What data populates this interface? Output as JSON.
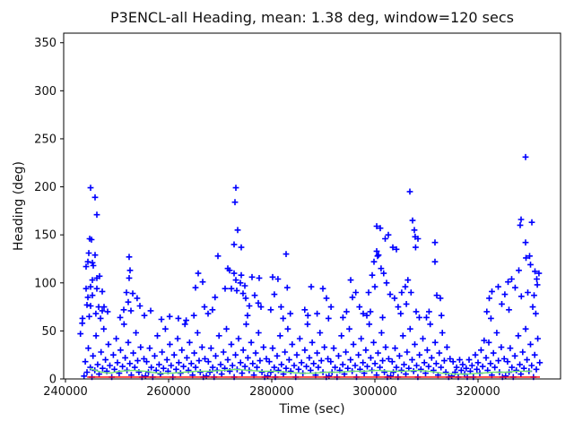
{
  "figure": {
    "background": "#ffffff"
  },
  "chart_data": {
    "type": "scatter",
    "title": "P3ENCL-all Heading, mean: 1.38 deg, window=120 secs",
    "xlabel": "Time (sec)",
    "ylabel": "Heading (deg)",
    "mean_deg": 1.38,
    "window_secs": 120,
    "xlim": [
      239650,
      336000
    ],
    "ylim": [
      0,
      360
    ],
    "xticks": [
      240000,
      260000,
      280000,
      300000,
      320000
    ],
    "yticks": [
      0,
      50,
      100,
      150,
      200,
      250,
      300,
      350
    ],
    "grid": false,
    "legend": "none",
    "colors": {
      "scatter": "#0000ff",
      "running_mean": "#70e070",
      "overall_mean": "#ff0000"
    },
    "series": [
      {
        "name": "heading-scatter",
        "kind": "scatter",
        "marker": "+",
        "color": "#0000ff",
        "points": [
          244870,
          199,
          245740,
          189,
          246090,
          171,
          244700,
          146,
          245050,
          145,
          244520,
          131,
          245740,
          129,
          244350,
          122,
          245220,
          121,
          244000,
          117,
          245390,
          118,
          245220,
          103,
          246090,
          105,
          246610,
          107,
          244000,
          94,
          244870,
          96,
          246090,
          94,
          247130,
          91,
          244350,
          85,
          245220,
          87,
          244170,
          77,
          244870,
          76,
          246430,
          75,
          247480,
          75,
          247130,
          71,
          248170,
          70,
          243300,
          63,
          244600,
          65,
          245900,
          68,
          246800,
          63,
          242900,
          47,
          243250,
          58,
          252350,
          127,
          252520,
          113,
          252350,
          105,
          251830,
          90,
          253040,
          89,
          252170,
          80,
          253900,
          84,
          254430,
          76,
          252700,
          71,
          256520,
          71,
          255300,
          66,
          251300,
          72,
          250600,
          64,
          258600,
          62,
          260200,
          65,
          261900,
          63,
          263400,
          61,
          265740,
          110,
          266610,
          101,
          269570,
          128,
          265220,
          95,
          266960,
          75,
          267650,
          68,
          268500,
          72,
          264900,
          66,
          269000,
          85,
          273040,
          199,
          272870,
          184,
          273390,
          155,
          272700,
          140,
          274090,
          137,
          271480,
          115,
          271830,
          113,
          272700,
          110,
          274090,
          108,
          273040,
          103,
          273910,
          100,
          274780,
          97,
          273220,
          92,
          274430,
          89,
          272170,
          94,
          270960,
          94,
          274960,
          84,
          276170,
          106,
          277570,
          105,
          276700,
          87,
          277390,
          79,
          277910,
          75,
          275650,
          76,
          275300,
          66,
          280170,
          106,
          281200,
          104,
          282780,
          130,
          283000,
          95,
          280500,
          88,
          279800,
          72,
          281800,
          75,
          283600,
          68,
          282200,
          63,
          287650,
          96,
          286400,
          72,
          287000,
          66,
          289910,
          94,
          290600,
          84,
          291500,
          75,
          288800,
          68,
          291000,
          63,
          295300,
          103,
          295650,
          85,
          296300,
          90,
          294500,
          70,
          297000,
          75,
          297740,
          68,
          293800,
          64,
          300350,
          159,
          301050,
          157,
          300520,
          128,
          302000,
          146,
          302600,
          150,
          303480,
          137,
          304170,
          135,
          306780,
          195,
          307300,
          165,
          307650,
          155,
          307800,
          148,
          308350,
          146,
          307900,
          137,
          300350,
          133,
          300700,
          129,
          299830,
          122,
          301200,
          115,
          301700,
          110,
          299480,
          108,
          302260,
          100,
          300000,
          96,
          298780,
          90,
          302960,
          88,
          303800,
          84,
          305200,
          90,
          305900,
          96,
          306400,
          103,
          304500,
          75,
          299130,
          70,
          298430,
          66,
          301500,
          64,
          305000,
          68,
          306100,
          78,
          307000,
          90,
          308000,
          70,
          308600,
          64,
          311650,
          142,
          311650,
          122,
          312000,
          87,
          312700,
          84,
          310500,
          70,
          310000,
          64,
          312900,
          66,
          322170,
          84,
          322700,
          91,
          323910,
          96,
          325830,
          101,
          326520,
          104,
          327910,
          113,
          321700,
          70,
          322500,
          63,
          324600,
          78,
          325200,
          88,
          326000,
          72,
          327200,
          95,
          328400,
          86,
          329220,
          231,
          328170,
          160,
          328350,
          166,
          330430,
          163,
          329300,
          126,
          330170,
          119,
          331040,
          112,
          331390,
          104,
          329650,
          90,
          330870,
          87,
          329220,
          142,
          330000,
          128,
          331800,
          110,
          331500,
          98,
          330600,
          75,
          331200,
          68,
          243600,
          3,
          243850,
          18,
          244170,
          7,
          244440,
          32,
          244820,
          12,
          245120,
          2,
          245340,
          24,
          245680,
          9,
          245930,
          45,
          246250,
          15,
          246520,
          5,
          246900,
          28,
          247200,
          11,
          247420,
          52,
          247760,
          20,
          248010,
          8,
          248330,
          36,
          248600,
          14,
          248980,
          2,
          249280,
          25,
          249500,
          10,
          249840,
          42,
          250090,
          17,
          250410,
          6,
          250680,
          30,
          251060,
          13,
          251360,
          57,
          251580,
          22,
          251920,
          9,
          252170,
          38,
          252490,
          16,
          252760,
          4,
          253140,
          27,
          253440,
          12,
          253660,
          48,
          254000,
          19,
          254250,
          7,
          254570,
          33,
          254840,
          2,
          255220,
          21,
          255520,
          3,
          255740,
          18,
          256080,
          7,
          256330,
          32,
          256650,
          12,
          256920,
          2,
          257300,
          24,
          257600,
          9,
          257820,
          45,
          258160,
          15,
          258410,
          5,
          258730,
          28,
          259000,
          11,
          259380,
          52,
          259680,
          20,
          259900,
          8,
          260240,
          36,
          260490,
          14,
          260810,
          2,
          261080,
          25,
          261460,
          10,
          261760,
          42,
          261980,
          17,
          262320,
          6,
          262570,
          30,
          262890,
          13,
          263160,
          57,
          263540,
          22,
          263840,
          9,
          264060,
          38,
          264400,
          16,
          264650,
          4,
          264970,
          27,
          265240,
          12,
          265620,
          48,
          265920,
          19,
          266140,
          7,
          266480,
          33,
          266730,
          2,
          267050,
          21,
          267320,
          3,
          267700,
          18,
          268000,
          7,
          268220,
          32,
          268560,
          12,
          268810,
          2,
          269130,
          24,
          269400,
          9,
          269780,
          45,
          270080,
          15,
          270300,
          5,
          270640,
          28,
          270890,
          11,
          271210,
          52,
          271480,
          20,
          271860,
          8,
          272160,
          36,
          272380,
          14,
          272720,
          2,
          272970,
          25,
          273290,
          10,
          273560,
          42,
          273940,
          17,
          274240,
          6,
          274460,
          30,
          274800,
          13,
          275050,
          57,
          275370,
          22,
          275640,
          9,
          276020,
          38,
          276320,
          16,
          276540,
          4,
          276880,
          27,
          277130,
          12,
          277450,
          48,
          277720,
          19,
          278100,
          7,
          278400,
          33,
          278620,
          2,
          278960,
          21,
          279210,
          3,
          279530,
          18,
          279800,
          7,
          280180,
          32,
          280480,
          12,
          280700,
          2,
          281040,
          24,
          281290,
          9,
          281610,
          45,
          281880,
          15,
          282260,
          5,
          282560,
          28,
          282780,
          11,
          283120,
          52,
          283370,
          20,
          283690,
          8,
          283960,
          36,
          284340,
          14,
          284640,
          2,
          284860,
          25,
          285200,
          10,
          285450,
          42,
          285770,
          17,
          286040,
          6,
          286420,
          30,
          286720,
          13,
          286940,
          57,
          287280,
          22,
          287530,
          9,
          287850,
          38,
          288120,
          16,
          288500,
          4,
          288800,
          27,
          289020,
          12,
          289360,
          48,
          289610,
          19,
          289930,
          7,
          290200,
          33,
          290580,
          2,
          290880,
          21,
          291100,
          3,
          291440,
          18,
          291690,
          7,
          292010,
          32,
          292280,
          12,
          292660,
          2,
          292960,
          24,
          293180,
          9,
          293520,
          45,
          293770,
          15,
          294090,
          5,
          294360,
          28,
          294740,
          11,
          295040,
          52,
          295260,
          20,
          295600,
          8,
          295850,
          36,
          296170,
          14,
          296440,
          2,
          296820,
          25,
          297120,
          10,
          297340,
          42,
          297680,
          17,
          297930,
          6,
          298250,
          30,
          298520,
          13,
          298900,
          57,
          299200,
          22,
          299420,
          9,
          299760,
          38,
          300010,
          16,
          300330,
          4,
          300600,
          27,
          300980,
          12,
          301280,
          48,
          301500,
          19,
          301840,
          7,
          302090,
          33,
          302410,
          2,
          302680,
          21,
          303060,
          3,
          303360,
          18,
          303580,
          7,
          303920,
          32,
          304170,
          12,
          304490,
          2,
          304760,
          24,
          305140,
          9,
          305440,
          45,
          305660,
          15,
          306000,
          5,
          306250,
          28,
          306570,
          11,
          306840,
          52,
          307220,
          20,
          307520,
          8,
          307740,
          36,
          308080,
          14,
          308330,
          2,
          308650,
          25,
          308920,
          10,
          309300,
          42,
          309600,
          17,
          309820,
          6,
          310160,
          30,
          310410,
          13,
          310730,
          57,
          311000,
          22,
          311380,
          9,
          311680,
          38,
          311900,
          16,
          312240,
          4,
          312490,
          27,
          312810,
          12,
          313080,
          48,
          313460,
          19,
          313760,
          7,
          313980,
          33,
          314320,
          2,
          314570,
          21,
          314890,
          3,
          315160,
          18,
          315540,
          7,
          315840,
          12,
          316180,
          2,
          316430,
          20,
          316750,
          9,
          317020,
          15,
          317400,
          5,
          317700,
          11,
          317920,
          2,
          318260,
          20,
          318510,
          8,
          318830,
          14,
          319100,
          2,
          319480,
          25,
          319780,
          10,
          320000,
          17,
          320340,
          6,
          320590,
          30,
          320910,
          13,
          321180,
          40,
          321560,
          22,
          321860,
          9,
          322080,
          38,
          322420,
          16,
          322670,
          4,
          322990,
          27,
          323260,
          12,
          323640,
          48,
          323940,
          19,
          324160,
          7,
          324500,
          33,
          324750,
          2,
          325070,
          21,
          325340,
          3,
          325720,
          18,
          326020,
          7,
          326240,
          32,
          326580,
          12,
          326830,
          2,
          327150,
          24,
          327420,
          9,
          327800,
          45,
          328100,
          15,
          328320,
          5,
          328660,
          28,
          328910,
          11,
          329230,
          52,
          329500,
          20,
          329880,
          8,
          330180,
          36,
          330400,
          14,
          330740,
          2,
          330990,
          25,
          331310,
          10,
          331580,
          42,
          331960,
          17
        ]
      },
      {
        "name": "running-mean-line",
        "kind": "line",
        "color": "#70e070",
        "points": [
          244700,
          11,
          245800,
          9,
          247000,
          7,
          248500,
          6,
          250500,
          8,
          253000,
          9,
          255500,
          8,
          258000,
          6,
          260500,
          6,
          263000,
          7,
          265500,
          8,
          268000,
          8,
          270500,
          9,
          273000,
          10,
          275500,
          9,
          278000,
          8,
          280500,
          8,
          283000,
          7,
          285500,
          6,
          288000,
          6,
          290500,
          7,
          293000,
          7,
          295500,
          8,
          298000,
          8,
          300500,
          9,
          303000,
          8,
          305500,
          8,
          308000,
          9,
          310500,
          8,
          313000,
          6,
          315500,
          5,
          318000,
          5,
          320500,
          6,
          323000,
          7,
          325500,
          7,
          327500,
          8,
          329500,
          8,
          330400,
          8
        ]
      },
      {
        "name": "overall-mean-line",
        "kind": "line",
        "color": "#ff0000",
        "points": [
          244200,
          2,
          332000,
          2
        ]
      }
    ]
  }
}
